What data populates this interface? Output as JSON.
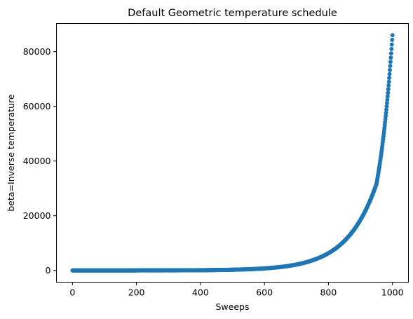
{
  "chart_data": {
    "type": "scatter",
    "title": "Default Geometric temperature schedule",
    "xlabel": "Sweeps",
    "ylabel": "beta=Inverse temperature",
    "xlim": [
      -50,
      1050
    ],
    "ylim": [
      -4300,
      90300
    ],
    "x_ticks": [
      0,
      200,
      400,
      600,
      800,
      1000
    ],
    "y_ticks": [
      0,
      20000,
      40000,
      60000,
      80000
    ],
    "x_tick_labels": [
      "0",
      "200",
      "400",
      "600",
      "800",
      "1000"
    ],
    "y_tick_labels": [
      "0",
      "20000",
      "40000",
      "60000",
      "80000"
    ],
    "grid": false,
    "series": [
      {
        "color": "#1f77b4",
        "marker": "circle",
        "sampled_points": {
          "x": [
            0,
            100,
            200,
            300,
            400,
            500,
            600,
            650,
            700,
            750,
            800,
            850,
            900,
            950,
            1000
          ],
          "y": [
            1,
            4,
            10,
            30,
            85,
            250,
            740,
            1260,
            2150,
            3700,
            6300,
            10800,
            18500,
            31600,
            86000
          ]
        }
      }
    ]
  }
}
